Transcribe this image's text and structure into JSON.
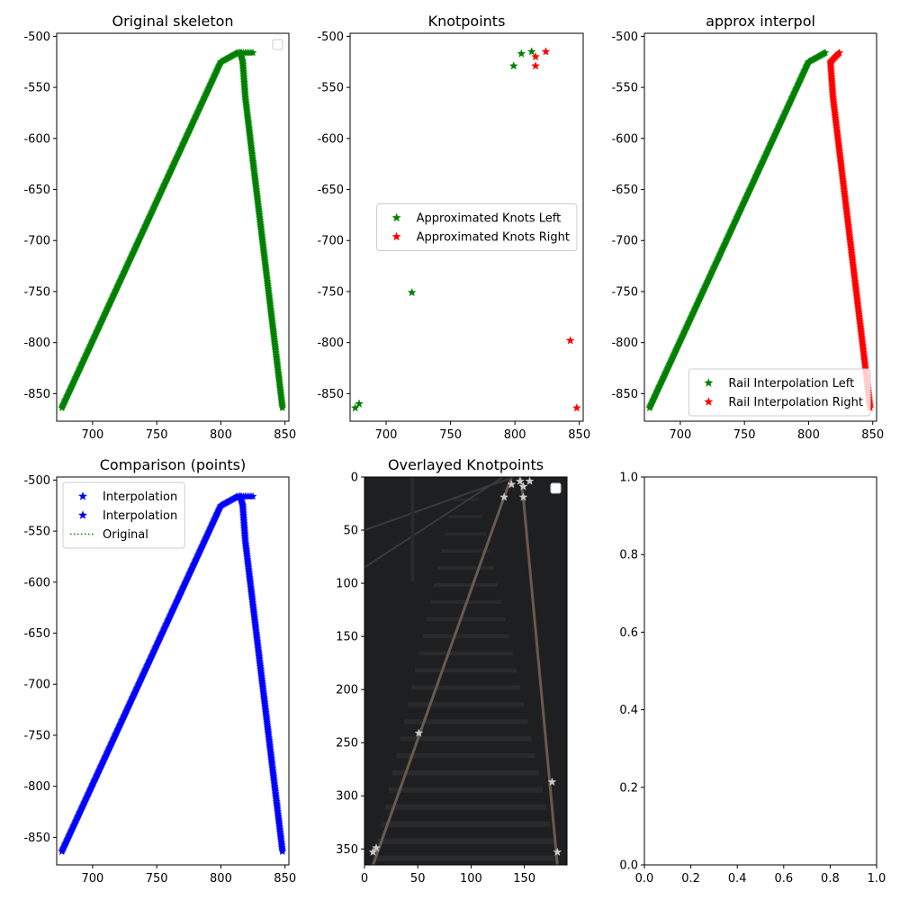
{
  "chart_data": [
    {
      "title": "Original skeleton",
      "type": "scatter",
      "xlim": [
        672,
        853
      ],
      "ylim": [
        -877,
        -497
      ],
      "xticks": [
        700,
        750,
        800,
        850
      ],
      "yticks": [
        -850,
        -800,
        -750,
        -700,
        -650,
        -600,
        -550,
        -500
      ],
      "legend": {
        "placement": "top-right",
        "entries": []
      },
      "series": [
        {
          "color": "#008000",
          "marker": "star",
          "dense": true,
          "points": [
            [
              676,
              -864
            ],
            [
              800,
              -525
            ],
            [
              813,
              -516
            ],
            [
              825,
              -516
            ]
          ]
        },
        {
          "color": "#008000",
          "marker": "star",
          "dense": true,
          "points": [
            [
              815,
              -516
            ],
            [
              817,
              -525
            ],
            [
              819,
              -560
            ],
            [
              848,
              -864
            ]
          ]
        }
      ]
    },
    {
      "title": "Knotpoints",
      "type": "scatter",
      "xlim": [
        672,
        853
      ],
      "ylim": [
        -877,
        -497
      ],
      "xticks": [
        700,
        750,
        800,
        850
      ],
      "yticks": [
        -850,
        -800,
        -750,
        -700,
        -650,
        -600,
        -550,
        -500
      ],
      "legend": {
        "placement": "center-right",
        "entries": [
          "Approximated Knots Left",
          "Approximated Knots Right"
        ]
      },
      "series": [
        {
          "name": "Approximated Knots Left",
          "color": "#008000",
          "marker": "star",
          "points": [
            [
              676,
              -864
            ],
            [
              679,
              -860
            ],
            [
              720,
              -751
            ],
            [
              799,
              -529
            ],
            [
              805,
              -517
            ],
            [
              813,
              -515
            ]
          ]
        },
        {
          "name": "Approximated Knots Right",
          "color": "#ff0000",
          "marker": "star",
          "points": [
            [
              816,
              -520
            ],
            [
              816,
              -529
            ],
            [
              824,
              -515
            ],
            [
              843,
              -798
            ],
            [
              848,
              -864
            ]
          ]
        }
      ]
    },
    {
      "title": "approx interpol",
      "type": "scatter",
      "xlim": [
        672,
        853
      ],
      "ylim": [
        -877,
        -497
      ],
      "xticks": [
        700,
        750,
        800,
        850
      ],
      "yticks": [
        -850,
        -800,
        -750,
        -700,
        -650,
        -600,
        -550,
        -500
      ],
      "legend": {
        "placement": "lower-right",
        "entries": [
          "Rail Interpolation Left",
          "Rail Interpolation Right"
        ]
      },
      "series": [
        {
          "name": "Rail Interpolation Left",
          "color": "#008000",
          "marker": "star",
          "dense": true,
          "points": [
            [
              676,
              -864
            ],
            [
              800,
              -525
            ],
            [
              813,
              -516
            ]
          ]
        },
        {
          "name": "Rail Interpolation Right",
          "color": "#ff0000",
          "marker": "star",
          "dense": true,
          "points": [
            [
              824,
              -516
            ],
            [
              817,
              -525
            ],
            [
              819,
              -560
            ],
            [
              848,
              -864
            ]
          ]
        }
      ]
    },
    {
      "title": "Comparison (points)",
      "type": "scatter",
      "xlim": [
        672,
        853
      ],
      "ylim": [
        -877,
        -497
      ],
      "xticks": [
        700,
        750,
        800,
        850
      ],
      "yticks": [
        -850,
        -800,
        -750,
        -700,
        -650,
        -600,
        -550,
        -500
      ],
      "legend": {
        "placement": "top-left",
        "entries": [
          "Interpolation",
          "Interpolation",
          "Original"
        ]
      },
      "series": [
        {
          "name": "Interpolation",
          "color": "#0000ff",
          "marker": "star",
          "dense": true,
          "points": [
            [
              676,
              -864
            ],
            [
              800,
              -525
            ],
            [
              813,
              -516
            ],
            [
              825,
              -516
            ]
          ]
        },
        {
          "name": "Interpolation",
          "color": "#0000ff",
          "marker": "star",
          "dense": true,
          "points": [
            [
              815,
              -516
            ],
            [
              817,
              -525
            ],
            [
              819,
              -560
            ],
            [
              848,
              -864
            ]
          ]
        },
        {
          "name": "Original",
          "color": "#008000",
          "marker": "dotted-line",
          "points": []
        }
      ]
    },
    {
      "title": "Overlayed Knotpoints",
      "type": "scatter",
      "image_background": true,
      "xlim": [
        0,
        190
      ],
      "ylim": [
        365,
        0
      ],
      "xticks": [
        0,
        50,
        100,
        150
      ],
      "yticks": [
        0,
        50,
        100,
        150,
        200,
        250,
        300,
        350
      ],
      "legend": {
        "placement": "top-right",
        "entries": []
      },
      "series": [
        {
          "color": "#c8c8c8",
          "marker": "star",
          "points": [
            [
              8,
              353
            ],
            [
              11,
              349
            ],
            [
              51,
              241
            ],
            [
              131,
              19
            ],
            [
              138,
              7
            ],
            [
              146,
              4
            ],
            [
              149,
              9
            ],
            [
              149,
              19
            ],
            [
              155,
              4
            ],
            [
              176,
              287
            ],
            [
              181,
              353
            ]
          ]
        }
      ]
    },
    {
      "title": "",
      "type": "scatter",
      "xlim": [
        0,
        1
      ],
      "ylim": [
        0,
        1
      ],
      "xticks": [
        "0.0",
        "0.2",
        "0.4",
        "0.6",
        "0.8",
        "1.0"
      ],
      "yticks": [
        "0.0",
        "0.2",
        "0.4",
        "0.6",
        "0.8",
        "1.0"
      ],
      "series": []
    }
  ]
}
